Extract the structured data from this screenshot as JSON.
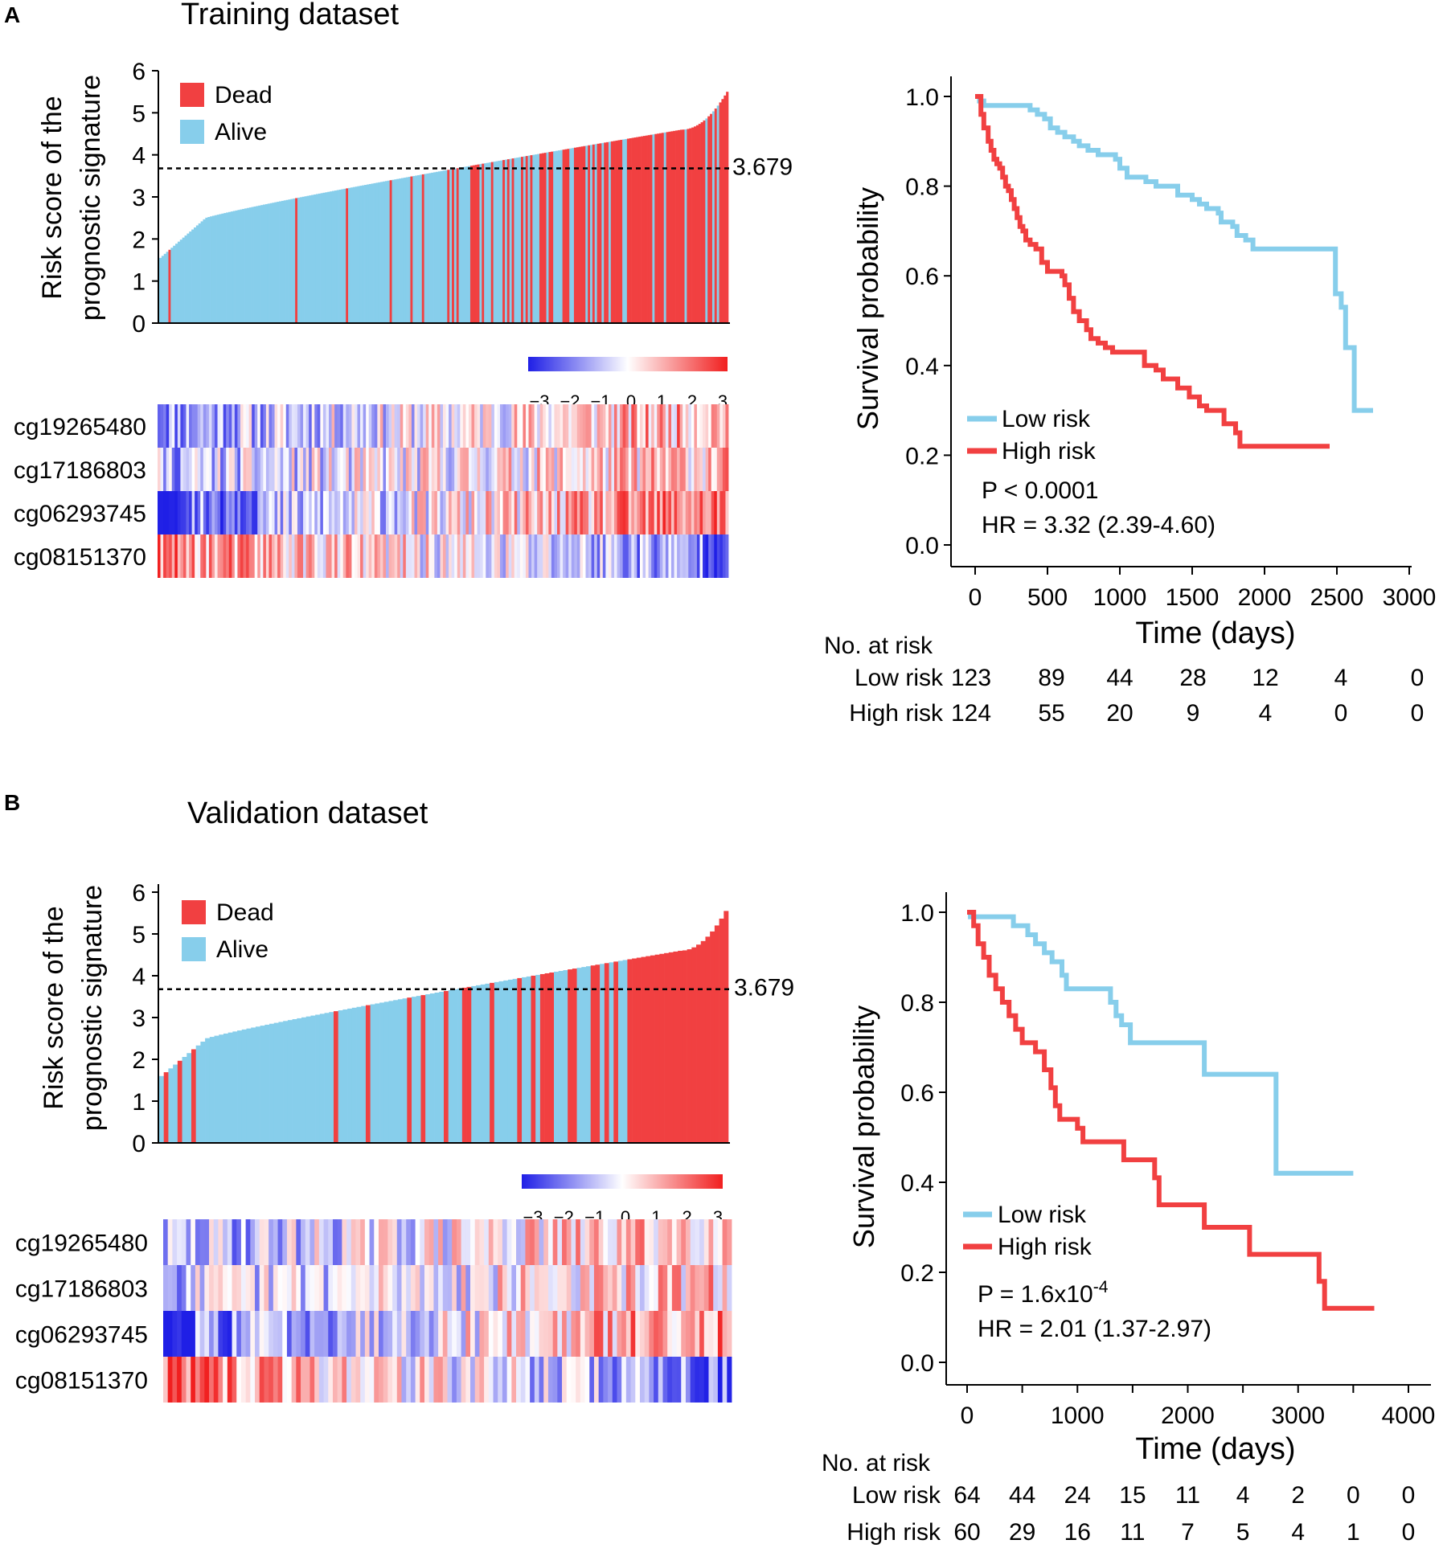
{
  "colors": {
    "dead": "#F14041",
    "alive": "#87CEEB",
    "low_risk_line": "#87CEEB",
    "high_risk_line": "#F14041",
    "heat_low": "#1F1FE6",
    "heat_mid": "#FFFFFF",
    "heat_high": "#F11F1F"
  },
  "panels": [
    {
      "letter": "A",
      "title": "Training dataset",
      "risk_plot": {
        "ylabel_line1": "Risk score of the",
        "ylabel_line2": "prognostic signature",
        "yticks": [
          "0",
          "1",
          "2",
          "3",
          "4",
          "5",
          "6"
        ],
        "ylim": [
          0,
          6
        ],
        "cutoff_value": 3.679,
        "cutoff_label": "3.679",
        "legend_dead": "Dead",
        "legend_alive": "Alive",
        "n_samples": 247,
        "score_min": 1.55,
        "score_max": 5.5,
        "dead_fraction_by_segment": [
          0.05,
          0.1,
          0.18,
          0.28,
          0.55,
          0.9
        ]
      },
      "heatmap": {
        "scale_labels": [
          "−3",
          "−2",
          "−1",
          "0",
          "1",
          "2",
          "3"
        ],
        "genes": [
          "cg19265480",
          "cg17186803",
          "cg06293745",
          "cg08151370"
        ],
        "trend": [
          0.8,
          0.6,
          1.2,
          -1.0
        ],
        "seed": 11
      },
      "km": {
        "ylabel": "Survival probability",
        "xlabel": "Time (days)",
        "yticks": [
          "0.0",
          "0.2",
          "0.4",
          "0.6",
          "0.8",
          "1.0"
        ],
        "xticks": [
          "0",
          "500",
          "1000",
          "1500",
          "2000",
          "2500",
          "3000"
        ],
        "xmax": 3000,
        "legend_low": "Low risk",
        "legend_high": "High risk",
        "p_text": "P < 0.0001",
        "hr_text": "HR = 3.32 (2.39-4.60)",
        "low_curve": [
          [
            0,
            1.0
          ],
          [
            30,
            0.99
          ],
          [
            60,
            0.98
          ],
          [
            360,
            0.98
          ],
          [
            380,
            0.97
          ],
          [
            430,
            0.96
          ],
          [
            480,
            0.95
          ],
          [
            520,
            0.93
          ],
          [
            570,
            0.92
          ],
          [
            620,
            0.91
          ],
          [
            680,
            0.9
          ],
          [
            720,
            0.89
          ],
          [
            780,
            0.88
          ],
          [
            850,
            0.87
          ],
          [
            970,
            0.86
          ],
          [
            1000,
            0.84
          ],
          [
            1050,
            0.82
          ],
          [
            1180,
            0.81
          ],
          [
            1250,
            0.8
          ],
          [
            1400,
            0.78
          ],
          [
            1500,
            0.77
          ],
          [
            1550,
            0.76
          ],
          [
            1600,
            0.75
          ],
          [
            1680,
            0.74
          ],
          [
            1700,
            0.72
          ],
          [
            1780,
            0.71
          ],
          [
            1810,
            0.69
          ],
          [
            1870,
            0.68
          ],
          [
            1920,
            0.66
          ],
          [
            2470,
            0.66
          ],
          [
            2490,
            0.56
          ],
          [
            2530,
            0.53
          ],
          [
            2560,
            0.44
          ],
          [
            2600,
            0.44
          ],
          [
            2620,
            0.3
          ],
          [
            2750,
            0.3
          ]
        ],
        "high_curve": [
          [
            0,
            1.0
          ],
          [
            40,
            0.96
          ],
          [
            60,
            0.93
          ],
          [
            90,
            0.9
          ],
          [
            110,
            0.88
          ],
          [
            130,
            0.86
          ],
          [
            150,
            0.85
          ],
          [
            170,
            0.84
          ],
          [
            190,
            0.82
          ],
          [
            210,
            0.8
          ],
          [
            230,
            0.79
          ],
          [
            250,
            0.77
          ],
          [
            270,
            0.75
          ],
          [
            290,
            0.73
          ],
          [
            310,
            0.71
          ],
          [
            330,
            0.7
          ],
          [
            350,
            0.68
          ],
          [
            380,
            0.67
          ],
          [
            420,
            0.66
          ],
          [
            460,
            0.63
          ],
          [
            500,
            0.61
          ],
          [
            600,
            0.6
          ],
          [
            620,
            0.58
          ],
          [
            650,
            0.55
          ],
          [
            680,
            0.52
          ],
          [
            720,
            0.5
          ],
          [
            770,
            0.48
          ],
          [
            800,
            0.46
          ],
          [
            850,
            0.45
          ],
          [
            900,
            0.44
          ],
          [
            950,
            0.43
          ],
          [
            1150,
            0.43
          ],
          [
            1170,
            0.4
          ],
          [
            1250,
            0.39
          ],
          [
            1300,
            0.37
          ],
          [
            1400,
            0.35
          ],
          [
            1480,
            0.33
          ],
          [
            1550,
            0.31
          ],
          [
            1600,
            0.3
          ],
          [
            1720,
            0.27
          ],
          [
            1800,
            0.25
          ],
          [
            1830,
            0.22
          ],
          [
            2450,
            0.22
          ]
        ],
        "risk_table": {
          "title": "No. at risk",
          "low_label": "Low risk",
          "high_label": "High risk",
          "low": [
            "123",
            "89",
            "44",
            "28",
            "12",
            "4",
            "0"
          ],
          "high": [
            "124",
            "55",
            "20",
            "9",
            "4",
            "0",
            "0"
          ]
        }
      }
    },
    {
      "letter": "B",
      "title": "Validation dataset",
      "risk_plot": {
        "ylabel_line1": "Risk score of the",
        "ylabel_line2": "prognostic signature",
        "yticks": [
          "0",
          "1",
          "2",
          "3",
          "4",
          "5",
          "6"
        ],
        "ylim": [
          0,
          6
        ],
        "cutoff_value": 3.679,
        "cutoff_label": "3.679",
        "legend_dead": "Dead",
        "legend_alive": "Alive",
        "n_samples": 124,
        "score_min": 1.6,
        "score_max": 5.55,
        "dead_fraction_by_segment": [
          0.05,
          0.12,
          0.22,
          0.35,
          0.55,
          0.85
        ]
      },
      "heatmap": {
        "scale_labels": [
          "−3",
          "−2",
          "−1",
          "0",
          "1",
          "2",
          "3"
        ],
        "genes": [
          "cg19265480",
          "cg17186803",
          "cg06293745",
          "cg08151370"
        ],
        "trend": [
          0.7,
          0.5,
          1.1,
          -1.1
        ],
        "seed": 29
      },
      "km": {
        "ylabel": "Survival probability",
        "xlabel": "Time (days)",
        "yticks": [
          "0.0",
          "0.2",
          "0.4",
          "0.6",
          "0.8",
          "1.0"
        ],
        "xticks": [
          "0",
          "1000",
          "2000",
          "3000",
          "4000"
        ],
        "xmax": 4000,
        "legend_low": "Low risk",
        "legend_high": "High risk",
        "p_text": "P = 1.6x10",
        "p_exp": "-4",
        "hr_text": "HR = 2.01 (1.37-2.97)",
        "low_curve": [
          [
            0,
            1.0
          ],
          [
            30,
            0.99
          ],
          [
            350,
            0.99
          ],
          [
            420,
            0.97
          ],
          [
            550,
            0.95
          ],
          [
            620,
            0.93
          ],
          [
            700,
            0.91
          ],
          [
            770,
            0.89
          ],
          [
            860,
            0.86
          ],
          [
            900,
            0.83
          ],
          [
            1250,
            0.83
          ],
          [
            1300,
            0.8
          ],
          [
            1350,
            0.77
          ],
          [
            1400,
            0.75
          ],
          [
            1480,
            0.71
          ],
          [
            2120,
            0.71
          ],
          [
            2150,
            0.64
          ],
          [
            2780,
            0.64
          ],
          [
            2800,
            0.42
          ],
          [
            3500,
            0.42
          ]
        ],
        "high_curve": [
          [
            0,
            1.0
          ],
          [
            60,
            0.97
          ],
          [
            100,
            0.93
          ],
          [
            150,
            0.9
          ],
          [
            200,
            0.86
          ],
          [
            260,
            0.83
          ],
          [
            320,
            0.8
          ],
          [
            380,
            0.77
          ],
          [
            440,
            0.74
          ],
          [
            500,
            0.71
          ],
          [
            620,
            0.69
          ],
          [
            700,
            0.65
          ],
          [
            760,
            0.61
          ],
          [
            800,
            0.57
          ],
          [
            840,
            0.54
          ],
          [
            1000,
            0.52
          ],
          [
            1050,
            0.49
          ],
          [
            1400,
            0.49
          ],
          [
            1420,
            0.45
          ],
          [
            1670,
            0.45
          ],
          [
            1700,
            0.41
          ],
          [
            1740,
            0.35
          ],
          [
            2110,
            0.35
          ],
          [
            2150,
            0.3
          ],
          [
            2530,
            0.3
          ],
          [
            2560,
            0.24
          ],
          [
            3150,
            0.24
          ],
          [
            3190,
            0.18
          ],
          [
            3240,
            0.12
          ],
          [
            3690,
            0.12
          ]
        ],
        "risk_table": {
          "title": "No. at risk",
          "low_label": "Low risk",
          "high_label": "High risk",
          "low": [
            "64",
            "44",
            "24",
            "15",
            "11",
            "4",
            "2",
            "0",
            "0"
          ],
          "high": [
            "60",
            "29",
            "16",
            "11",
            "7",
            "5",
            "4",
            "1",
            "0"
          ],
          "times": [
            0,
            500,
            1000,
            1500,
            2000,
            2500,
            3000,
            3500,
            4000
          ]
        }
      }
    }
  ]
}
